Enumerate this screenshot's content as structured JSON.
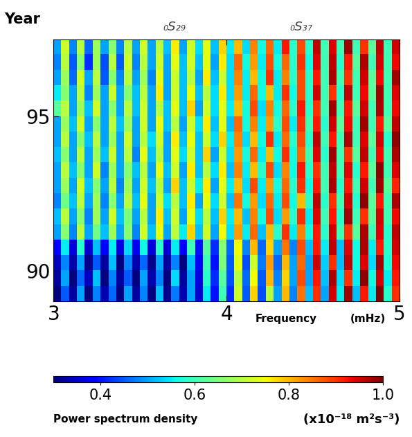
{
  "chart_data": {
    "type": "heatmap",
    "ylabel": "Year",
    "xlabel": "Frequency",
    "xlabel_unit": "(mHz)",
    "xlim": [
      3,
      5
    ],
    "xticks": [
      3,
      4,
      5
    ],
    "ylim": [
      89,
      97.5
    ],
    "yticks": [
      90,
      95
    ],
    "annotations": [
      {
        "text": "₀S₂₉",
        "x": 3.7
      },
      {
        "text": "₀S₃₇",
        "x": 4.43
      }
    ],
    "colorbar": {
      "range": [
        0.3,
        1.0
      ],
      "ticks": [
        0.4,
        0.6,
        0.8,
        1.0
      ],
      "label": "Power spectrum density",
      "unit": "(x10⁻¹⁸ m²s⁻³)"
    },
    "cells": [
      [
        0.3,
        0.45,
        0.32,
        0.5,
        0.3,
        0.48,
        0.33,
        0.46,
        0.3,
        0.5,
        0.32,
        0.48,
        0.3,
        0.52,
        0.31,
        0.47,
        0.33,
        0.5,
        0.35,
        0.55,
        0.4,
        0.6,
        0.42,
        0.72,
        0.45,
        0.78,
        0.44,
        0.7,
        0.5,
        0.8,
        0.48,
        0.85,
        0.52,
        0.9,
        0.5,
        0.95,
        0.55,
        0.98,
        0.52,
        0.92,
        0.55,
        1.0,
        0.58,
        0.9
      ],
      [
        0.32,
        0.5,
        0.3,
        0.46,
        0.34,
        0.52,
        0.3,
        0.48,
        0.32,
        0.45,
        0.3,
        0.5,
        0.33,
        0.48,
        0.3,
        0.54,
        0.32,
        0.5,
        0.36,
        0.58,
        0.42,
        0.62,
        0.44,
        0.7,
        0.46,
        0.75,
        0.45,
        0.8,
        0.48,
        0.78,
        0.5,
        0.88,
        0.5,
        0.92,
        0.52,
        0.97,
        0.54,
        0.9,
        0.55,
        0.99,
        0.56,
        0.95,
        0.55,
        0.92
      ],
      [
        0.34,
        0.48,
        0.33,
        0.5,
        0.31,
        0.45,
        0.32,
        0.52,
        0.3,
        0.48,
        0.33,
        0.46,
        0.31,
        0.5,
        0.32,
        0.48,
        0.3,
        0.52,
        0.38,
        0.6,
        0.4,
        0.65,
        0.45,
        0.74,
        0.44,
        0.72,
        0.47,
        0.82,
        0.46,
        0.8,
        0.5,
        0.86,
        0.5,
        0.95,
        0.53,
        0.9,
        0.52,
        0.96,
        0.56,
        0.94,
        0.54,
        0.98,
        0.57,
        0.93
      ],
      [
        0.38,
        0.55,
        0.36,
        0.58,
        0.35,
        0.52,
        0.38,
        0.55,
        0.36,
        0.54,
        0.37,
        0.56,
        0.36,
        0.58,
        0.35,
        0.55,
        0.38,
        0.6,
        0.4,
        0.62,
        0.42,
        0.66,
        0.46,
        0.75,
        0.48,
        0.8,
        0.46,
        0.78,
        0.5,
        0.85,
        0.48,
        0.88,
        0.52,
        0.92,
        0.55,
        0.96,
        0.52,
        0.94,
        0.56,
        0.97,
        0.55,
        0.92,
        0.58,
        0.95
      ],
      [
        0.5,
        0.66,
        0.48,
        0.7,
        0.5,
        0.64,
        0.52,
        0.68,
        0.5,
        0.66,
        0.48,
        0.72,
        0.52,
        0.74,
        0.5,
        0.7,
        0.55,
        0.78,
        0.52,
        0.72,
        0.5,
        0.75,
        0.54,
        0.82,
        0.55,
        0.86,
        0.52,
        0.8,
        0.58,
        0.9,
        0.55,
        0.84,
        0.56,
        0.92,
        0.58,
        0.95,
        0.6,
        0.9,
        0.62,
        0.97,
        0.6,
        0.94,
        0.58,
        0.96
      ],
      [
        0.52,
        0.7,
        0.5,
        0.66,
        0.48,
        0.68,
        0.5,
        0.72,
        0.52,
        0.65,
        0.5,
        0.7,
        0.5,
        0.76,
        0.52,
        0.72,
        0.5,
        0.74,
        0.54,
        0.7,
        0.52,
        0.78,
        0.55,
        0.8,
        0.52,
        0.84,
        0.56,
        0.88,
        0.54,
        0.82,
        0.58,
        0.9,
        0.55,
        0.94,
        0.6,
        0.92,
        0.58,
        0.98,
        0.6,
        0.9,
        0.62,
        0.95,
        0.6,
        0.93
      ],
      [
        0.48,
        0.64,
        0.52,
        0.7,
        0.5,
        0.68,
        0.48,
        0.66,
        0.5,
        0.7,
        0.52,
        0.74,
        0.5,
        0.72,
        0.54,
        0.7,
        0.52,
        0.76,
        0.5,
        0.74,
        0.54,
        0.72,
        0.52,
        0.85,
        0.56,
        0.82,
        0.54,
        0.86,
        0.55,
        0.88,
        0.56,
        0.8,
        0.58,
        0.96,
        0.58,
        0.9,
        0.6,
        0.95,
        0.58,
        0.99,
        0.62,
        0.92,
        0.6,
        0.97
      ],
      [
        0.5,
        0.68,
        0.5,
        0.72,
        0.52,
        0.66,
        0.5,
        0.7,
        0.48,
        0.68,
        0.5,
        0.72,
        0.52,
        0.7,
        0.5,
        0.78,
        0.52,
        0.72,
        0.55,
        0.76,
        0.5,
        0.74,
        0.55,
        0.8,
        0.54,
        0.88,
        0.55,
        0.82,
        0.56,
        0.86,
        0.58,
        0.9,
        0.56,
        0.92,
        0.6,
        0.97,
        0.58,
        0.92,
        0.6,
        0.95,
        0.6,
        0.98,
        0.62,
        0.91
      ],
      [
        0.5,
        0.7,
        0.52,
        0.66,
        0.5,
        0.72,
        0.48,
        0.68,
        0.5,
        0.66,
        0.52,
        0.7,
        0.5,
        0.74,
        0.52,
        0.72,
        0.5,
        0.76,
        0.52,
        0.7,
        0.54,
        0.76,
        0.52,
        0.84,
        0.55,
        0.8,
        0.58,
        0.88,
        0.54,
        0.84,
        0.56,
        0.92,
        0.58,
        0.9,
        0.6,
        0.96,
        0.6,
        0.94,
        0.58,
        0.92,
        0.62,
        0.99,
        0.6,
        0.94
      ],
      [
        0.52,
        0.66,
        0.5,
        0.7,
        0.5,
        0.68,
        0.52,
        0.72,
        0.5,
        0.7,
        0.48,
        0.74,
        0.52,
        0.7,
        0.5,
        0.74,
        0.54,
        0.72,
        0.52,
        0.78,
        0.5,
        0.72,
        0.54,
        0.82,
        0.56,
        0.86,
        0.55,
        0.8,
        0.56,
        0.9,
        0.56,
        0.86,
        0.6,
        0.94,
        0.58,
        0.98,
        0.6,
        0.9,
        0.62,
        0.96,
        0.6,
        0.93,
        0.6,
        0.97
      ],
      [
        0.5,
        0.7,
        0.5,
        0.66,
        0.52,
        0.7,
        0.5,
        0.68,
        0.5,
        0.72,
        0.5,
        0.7,
        0.54,
        0.72,
        0.5,
        0.76,
        0.52,
        0.74,
        0.52,
        0.72,
        0.54,
        0.78,
        0.55,
        0.84,
        0.54,
        0.8,
        0.56,
        0.9,
        0.55,
        0.86,
        0.58,
        0.88,
        0.58,
        0.96,
        0.6,
        0.92,
        0.6,
        0.97,
        0.6,
        0.94,
        0.62,
        0.95,
        0.58,
        0.99
      ],
      [
        0.5,
        0.68,
        0.52,
        0.72,
        0.5,
        0.66,
        0.5,
        0.7,
        0.52,
        0.68,
        0.5,
        0.72,
        0.5,
        0.74,
        0.52,
        0.7,
        0.5,
        0.72,
        0.54,
        0.76,
        0.52,
        0.74,
        0.52,
        0.86,
        0.56,
        0.84,
        0.55,
        0.82,
        0.58,
        0.88,
        0.55,
        0.9,
        0.6,
        0.92,
        0.58,
        0.95,
        0.62,
        0.93,
        0.6,
        0.98,
        0.6,
        0.92,
        0.62,
        0.96
      ],
      [
        0.62,
        0.7,
        0.5,
        0.68,
        0.52,
        0.72,
        0.5,
        0.66,
        0.5,
        0.7,
        0.52,
        0.72,
        0.5,
        0.7,
        0.52,
        0.74,
        0.52,
        0.78,
        0.5,
        0.72,
        0.54,
        0.74,
        0.55,
        0.8,
        0.56,
        0.88,
        0.54,
        0.84,
        0.56,
        0.86,
        0.58,
        0.92,
        0.58,
        0.9,
        0.6,
        0.98,
        0.6,
        0.92,
        0.62,
        0.95,
        0.6,
        0.97,
        0.6,
        0.93
      ],
      [
        0.55,
        0.66,
        0.5,
        0.7,
        0.48,
        0.68,
        0.5,
        0.72,
        0.5,
        0.66,
        0.52,
        0.7,
        0.5,
        0.76,
        0.5,
        0.72,
        0.52,
        0.74,
        0.52,
        0.7,
        0.54,
        0.76,
        0.54,
        0.82,
        0.55,
        0.86,
        0.56,
        0.8,
        0.55,
        0.9,
        0.56,
        0.88,
        0.58,
        0.95,
        0.6,
        0.9,
        0.58,
        0.96,
        0.6,
        0.93,
        0.62,
        0.98,
        0.6,
        0.94
      ],
      [
        0.5,
        0.68,
        0.46,
        0.72,
        0.5,
        0.7,
        0.45,
        0.66,
        0.48,
        0.7,
        0.5,
        0.68,
        0.48,
        0.74,
        0.5,
        0.72,
        0.52,
        0.7,
        0.5,
        0.76,
        0.52,
        0.72,
        0.54,
        0.84,
        0.55,
        0.8,
        0.56,
        0.9,
        0.55,
        0.84,
        0.58,
        0.88,
        0.58,
        0.92,
        0.6,
        0.97,
        0.6,
        0.9,
        0.6,
        0.95,
        0.62,
        0.93,
        0.6,
        0.98
      ],
      [
        0.48,
        0.7,
        0.45,
        0.66,
        0.42,
        0.68,
        0.44,
        0.7,
        0.45,
        0.72,
        0.48,
        0.7,
        0.5,
        0.72,
        0.5,
        0.74,
        0.52,
        0.72,
        0.52,
        0.74,
        0.5,
        0.76,
        0.54,
        0.86,
        0.56,
        0.82,
        0.55,
        0.88,
        0.56,
        0.86,
        0.58,
        0.9,
        0.56,
        0.94,
        0.6,
        0.96,
        0.58,
        0.92,
        0.62,
        0.97,
        0.6,
        0.95,
        0.6,
        0.93
      ],
      [
        0.5,
        0.72,
        0.48,
        0.7,
        0.46,
        0.68,
        0.5,
        0.66,
        0.48,
        0.7,
        0.5,
        0.72,
        0.5,
        0.7,
        0.52,
        0.76,
        0.5,
        0.72,
        0.54,
        0.74,
        0.52,
        0.78,
        0.55,
        0.8,
        0.54,
        0.84,
        0.56,
        0.86,
        0.55,
        0.92,
        0.58,
        0.88,
        0.58,
        0.96,
        0.6,
        0.94,
        0.6,
        0.98,
        0.6,
        0.9,
        0.62,
        0.96,
        0.6,
        0.95
      ]
    ]
  }
}
